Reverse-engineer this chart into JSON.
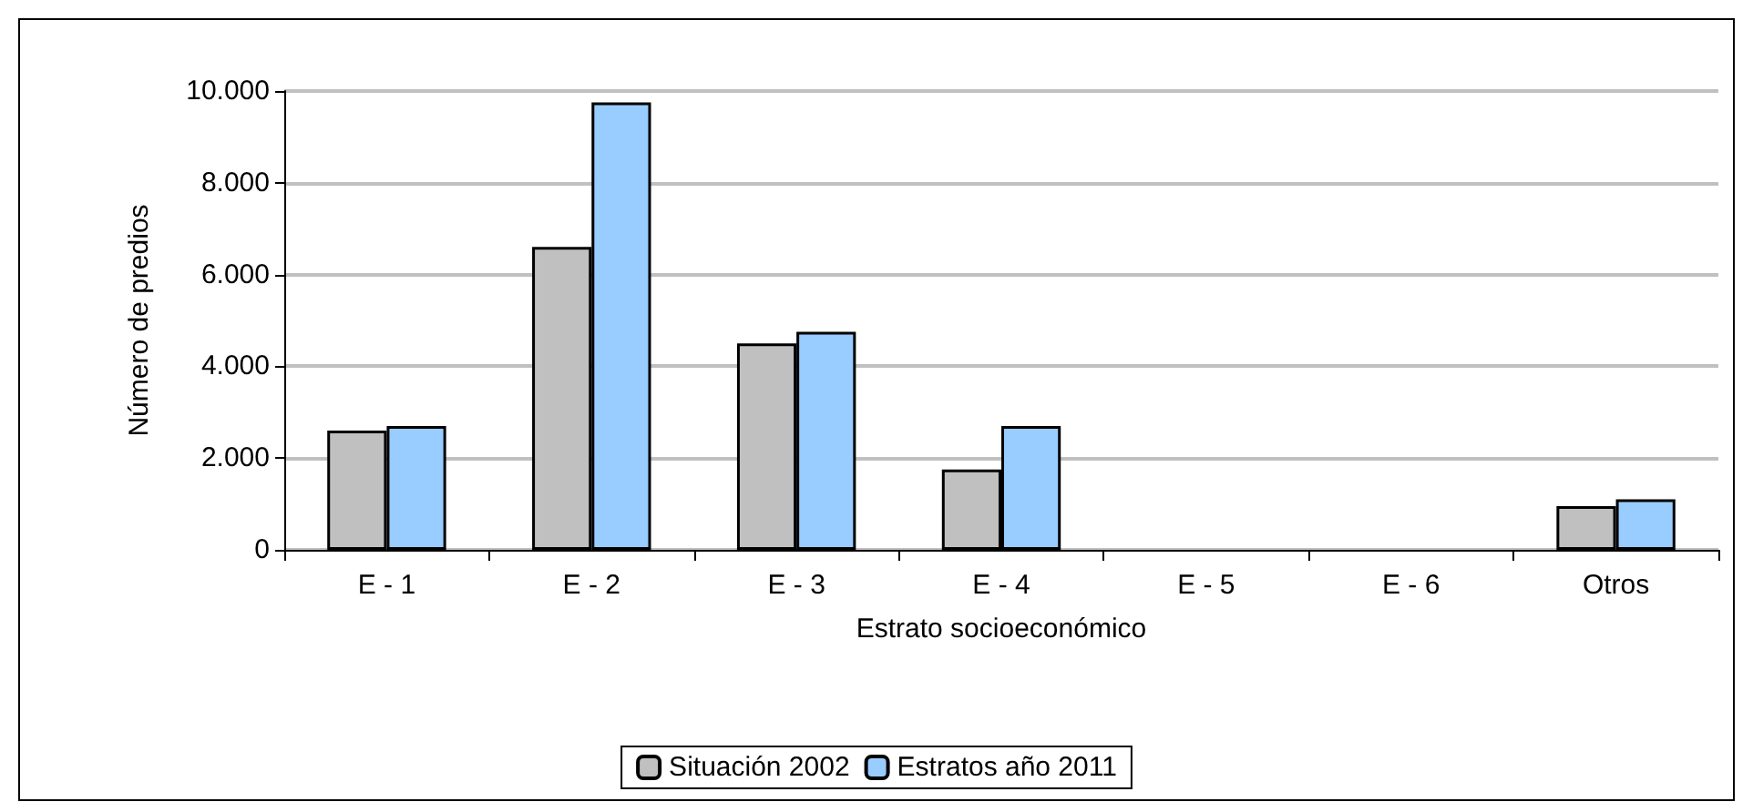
{
  "chart_data": {
    "type": "bar",
    "xlabel": "Estrato socioeconómico",
    "ylabel": "Número de predios",
    "categories": [
      "E - 1",
      "E - 2",
      "E - 3",
      "E - 4",
      "E - 5",
      "E - 6",
      "Otros"
    ],
    "series": [
      {
        "name": "Situación 2002",
        "color": "#c0c0c0",
        "values": [
          2600,
          6600,
          4500,
          1750,
          null,
          null,
          950
        ]
      },
      {
        "name": "Estratos año 2011",
        "color": "#99ccff",
        "values": [
          2700,
          9750,
          4750,
          2700,
          null,
          null,
          1100
        ]
      }
    ],
    "ylim": [
      0,
      10000
    ],
    "yticks": [
      {
        "value": 0,
        "label": "0"
      },
      {
        "value": 2000,
        "label": "2.000"
      },
      {
        "value": 4000,
        "label": "4.000"
      },
      {
        "value": 6000,
        "label": "6.000"
      },
      {
        "value": 8000,
        "label": "8.000"
      },
      {
        "value": 10000,
        "label": "10.000"
      }
    ],
    "grid": "y",
    "legend": "bottom"
  }
}
